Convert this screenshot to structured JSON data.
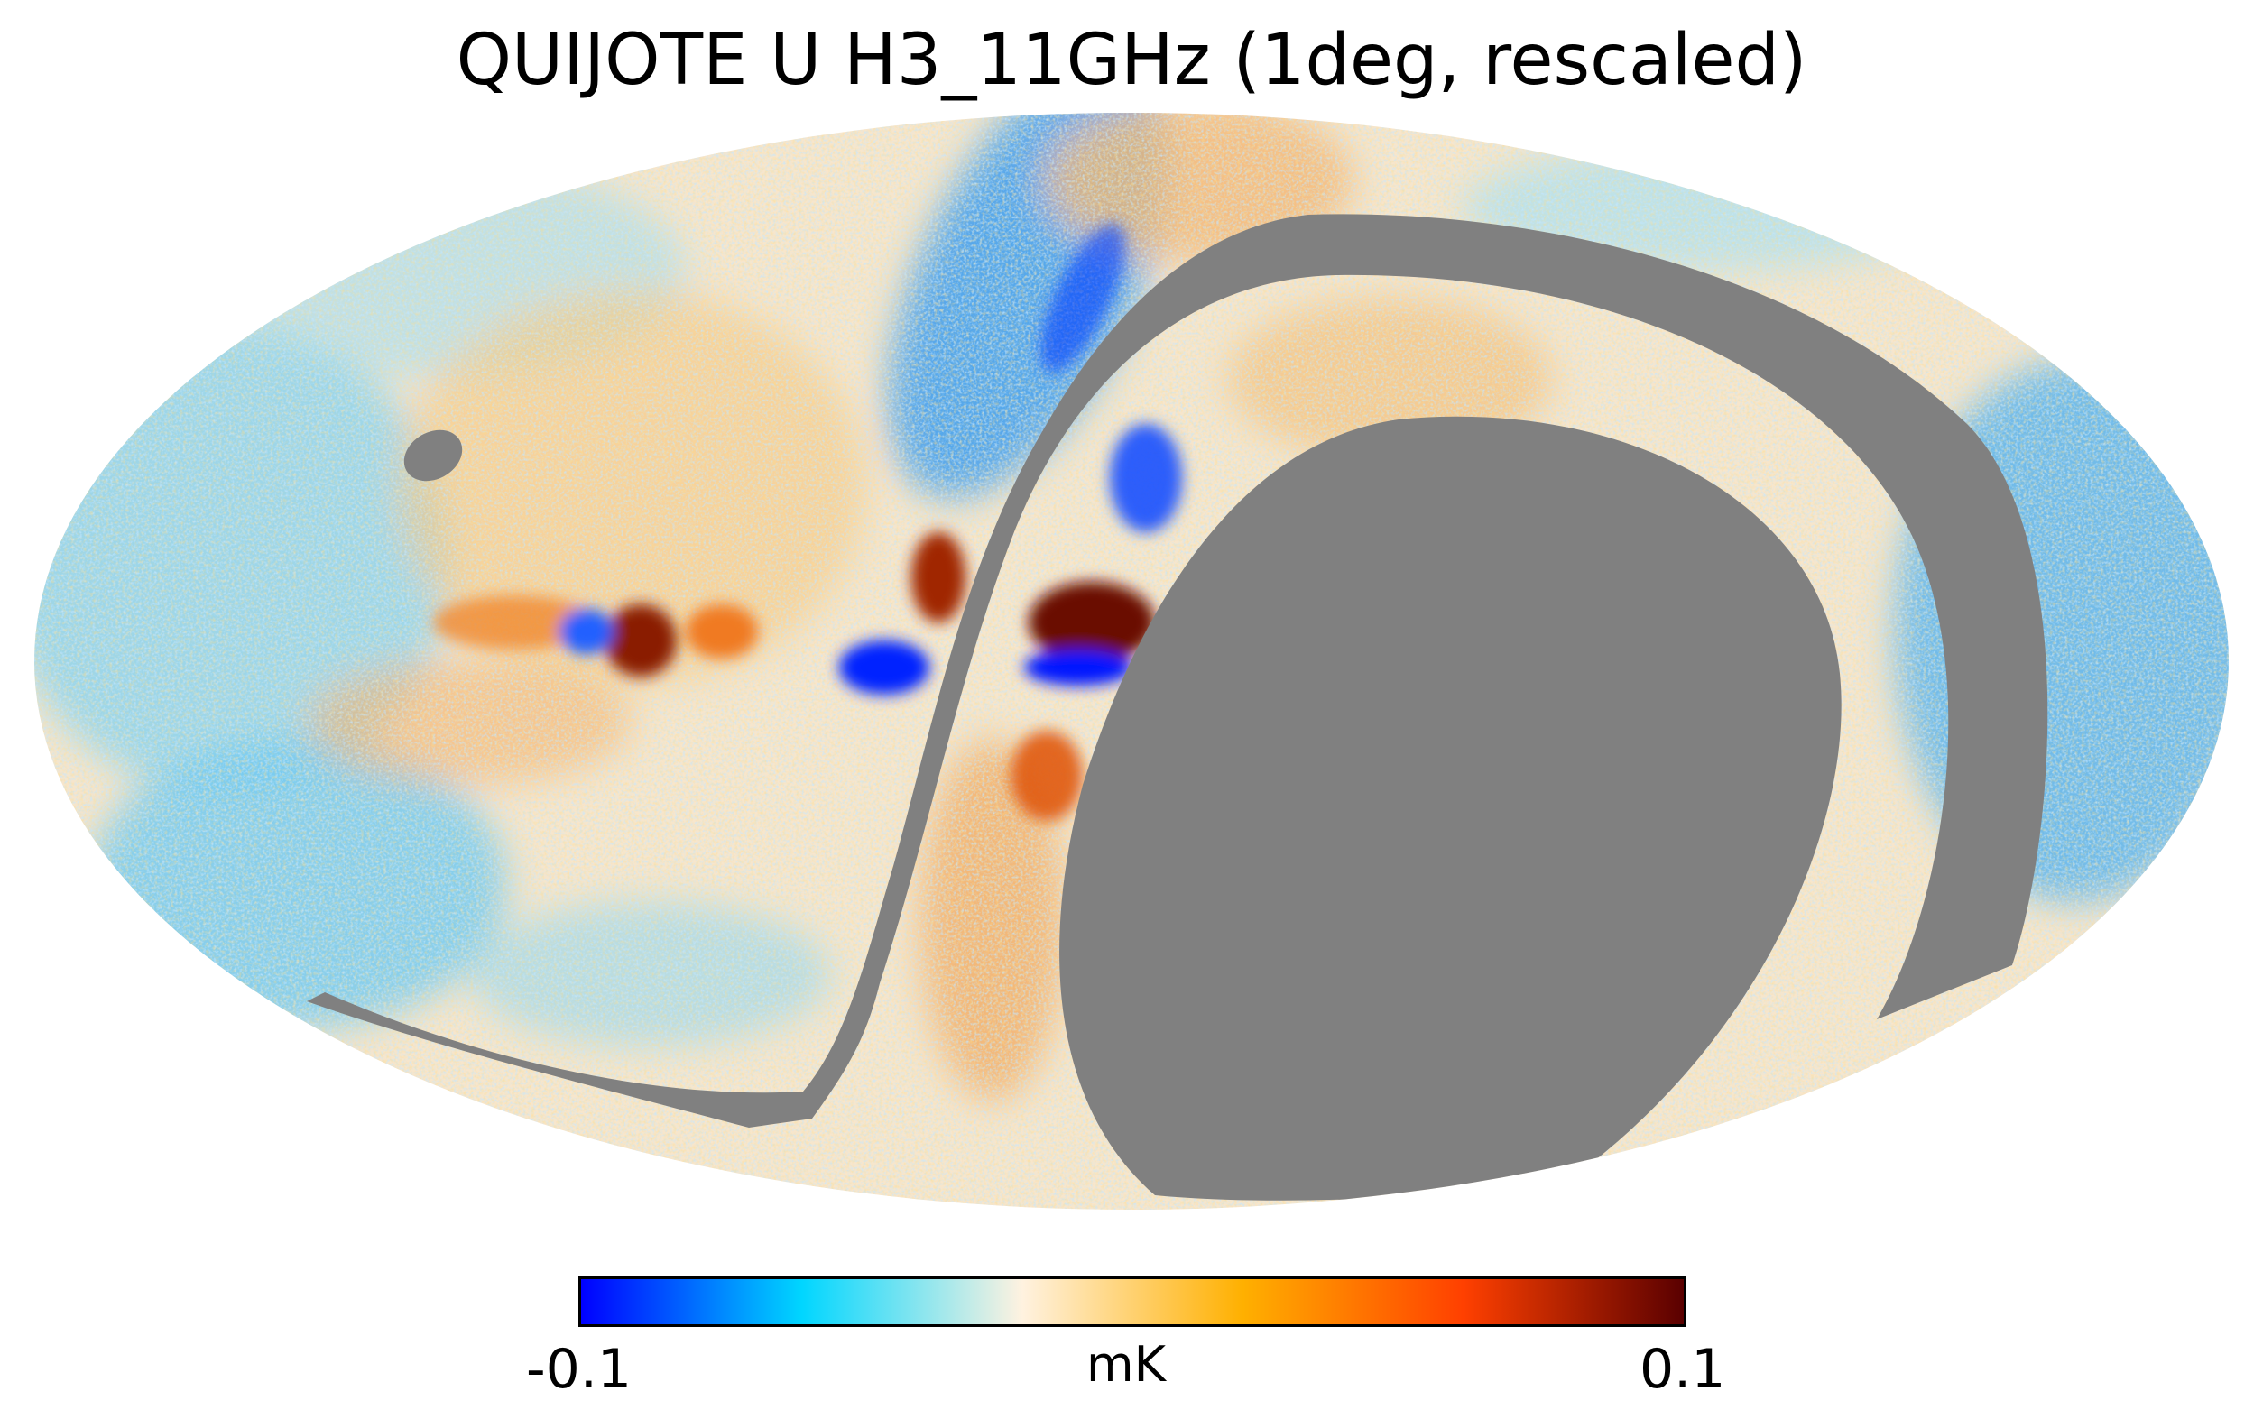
{
  "title": "QUIJOTE U H3_11GHz (1deg, rescaled)",
  "colorbar": {
    "min_label": "-0.1",
    "max_label": "0.1",
    "unit": "mK",
    "min": -0.1,
    "max": 0.1,
    "colormap": [
      "#0000ff",
      "#00d6ff",
      "#fff2e0",
      "#ffb000",
      "#ff4000",
      "#5a0000"
    ]
  },
  "map": {
    "projection": "Mollweide",
    "masked_color": "#808080"
  }
}
